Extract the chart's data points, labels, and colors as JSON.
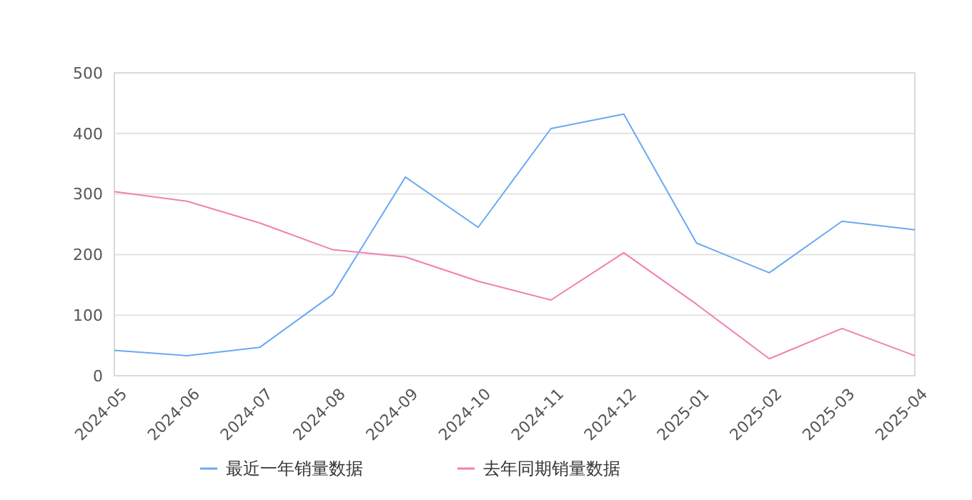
{
  "chart_data": {
    "type": "line",
    "categories": [
      "2024-05",
      "2024-06",
      "2024-07",
      "2024-08",
      "2024-09",
      "2024-10",
      "2024-11",
      "2024-12",
      "2025-01",
      "2025-02",
      "2025-03",
      "2025-04"
    ],
    "series": [
      {
        "name": "最近一年销量数据",
        "color": "#6aa9f2",
        "values": [
          42,
          33,
          47,
          134,
          328,
          245,
          408,
          432,
          219,
          170,
          255,
          241
        ]
      },
      {
        "name": "去年同期销量数据",
        "color": "#f17fb3",
        "values": [
          304,
          288,
          252,
          208,
          196,
          156,
          125,
          203,
          118,
          28,
          78,
          33
        ]
      }
    ],
    "ylim": [
      0,
      500
    ],
    "yticks": [
      0,
      100,
      200,
      300,
      400,
      500
    ],
    "grid": "y",
    "legend": "bottom",
    "marker": "none",
    "line_style": "solid"
  }
}
